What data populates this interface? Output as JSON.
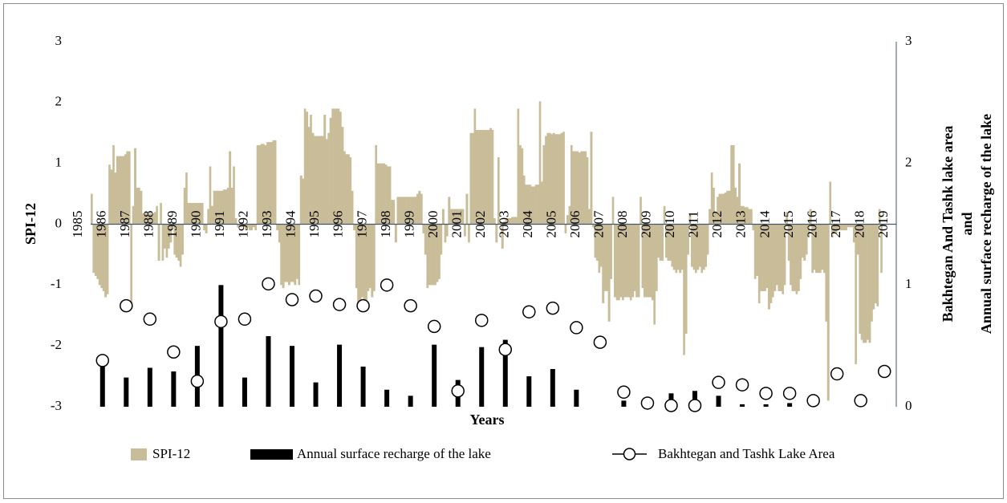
{
  "chart_data": {
    "type": "bar",
    "xlabel": "Years",
    "ylabel": "SPI-12",
    "y2label": [
      "Bakhtegan And Tashk lake area",
      "and",
      "Annual surface recharge of the lake"
    ],
    "xlim": [
      1985,
      2019
    ],
    "xticks": [
      1985,
      1986,
      1987,
      1988,
      1989,
      1990,
      1991,
      1992,
      1993,
      1994,
      1995,
      1996,
      1997,
      1998,
      1999,
      2000,
      2001,
      2002,
      2003,
      2004,
      2005,
      2006,
      2007,
      2008,
      2009,
      2010,
      2011,
      2012,
      2013,
      2014,
      2015,
      2016,
      2017,
      2018,
      2019
    ],
    "ylim": [
      -3,
      3
    ],
    "yticks": [
      -3,
      -2,
      -1,
      0,
      1,
      2,
      3
    ],
    "y2lim": [
      0,
      3
    ],
    "y2ticks": [
      0,
      1,
      2,
      3
    ],
    "legend": "bottom",
    "series": [
      {
        "name": "SPI-12",
        "type": "bar",
        "color": "#c8bd98",
        "x": [
          1985,
          1985.08,
          1985.17,
          1985.25,
          1985.33,
          1985.42,
          1985.5,
          1985.58,
          1985.67,
          1985.75,
          1985.83,
          1985.92,
          1986,
          1986.08,
          1986.17,
          1986.25,
          1986.33,
          1986.42,
          1986.5,
          1986.58,
          1986.67,
          1986.75,
          1986.83,
          1986.92,
          1987,
          1987.08,
          1987.17,
          1987.25,
          1987.33,
          1987.42,
          1987.5,
          1987.58,
          1987.67,
          1987.75,
          1987.83,
          1987.92,
          1988,
          1988.08,
          1988.17,
          1988.25,
          1988.33,
          1988.42,
          1988.5,
          1988.58,
          1988.67,
          1988.75,
          1988.83,
          1988.92,
          1989,
          1989.08,
          1989.17,
          1989.25,
          1989.33,
          1989.42,
          1989.5,
          1989.58,
          1989.67,
          1989.75,
          1989.83,
          1989.92,
          1990,
          1990.08,
          1990.17,
          1990.25,
          1990.33,
          1990.42,
          1990.5,
          1990.58,
          1990.67,
          1990.75,
          1990.83,
          1990.92,
          1991,
          1991.08,
          1991.17,
          1991.25,
          1991.33,
          1991.42,
          1991.5,
          1991.58,
          1991.67,
          1991.75,
          1991.83,
          1991.92,
          1992,
          1992.08,
          1992.17,
          1992.25,
          1992.33,
          1992.42,
          1992.5,
          1992.58,
          1992.67,
          1992.75,
          1992.83,
          1992.92,
          1993,
          1993.08,
          1993.17,
          1993.25,
          1993.33,
          1993.42,
          1993.5,
          1993.58,
          1993.67,
          1993.75,
          1993.83,
          1993.92,
          1994,
          1994.08,
          1994.17,
          1994.25,
          1994.33,
          1994.42,
          1994.5,
          1994.58,
          1994.67,
          1994.75,
          1994.83,
          1994.92,
          1995,
          1995.08,
          1995.17,
          1995.25,
          1995.33,
          1995.42,
          1995.5,
          1995.58,
          1995.67,
          1995.75,
          1995.83,
          1995.92,
          1996,
          1996.08,
          1996.17,
          1996.25,
          1996.33,
          1996.42,
          1996.5,
          1996.58,
          1996.67,
          1996.75,
          1996.83,
          1996.92,
          1997,
          1997.08,
          1997.17,
          1997.25,
          1997.33,
          1997.42,
          1997.5,
          1997.58,
          1997.67,
          1997.75,
          1997.83,
          1997.92,
          1998,
          1998.08,
          1998.17,
          1998.25,
          1998.33,
          1998.42,
          1998.5,
          1998.58,
          1998.67,
          1998.75,
          1998.83,
          1998.92,
          1999,
          1999.08,
          1999.17,
          1999.25,
          1999.33,
          1999.42,
          1999.5,
          1999.58,
          1999.67,
          1999.75,
          1999.83,
          1999.92,
          2000,
          2000.08,
          2000.17,
          2000.25,
          2000.33,
          2000.42,
          2000.5,
          2000.58,
          2000.67,
          2000.75,
          2000.83,
          2000.92,
          2001,
          2001.08,
          2001.17,
          2001.25,
          2001.33,
          2001.42,
          2001.5,
          2001.58,
          2001.67,
          2001.75,
          2001.83,
          2001.92,
          2002,
          2002.08,
          2002.17,
          2002.25,
          2002.33,
          2002.42,
          2002.5,
          2002.58,
          2002.67,
          2002.75,
          2002.83,
          2002.92,
          2003,
          2003.08,
          2003.17,
          2003.25,
          2003.33,
          2003.42,
          2003.5,
          2003.58,
          2003.67,
          2003.75,
          2003.83,
          2003.92,
          2004,
          2004.08,
          2004.17,
          2004.25,
          2004.33,
          2004.42,
          2004.5,
          2004.58,
          2004.67,
          2004.75,
          2004.83,
          2004.92,
          2005,
          2005.08,
          2005.17,
          2005.25,
          2005.33,
          2005.42,
          2005.5,
          2005.58,
          2005.67,
          2005.75,
          2005.83,
          2005.92,
          2006,
          2006.08,
          2006.17,
          2006.25,
          2006.33,
          2006.42,
          2006.5,
          2006.58,
          2006.67,
          2006.75,
          2006.83,
          2006.92,
          2007,
          2007.08,
          2007.17,
          2007.25,
          2007.33,
          2007.42,
          2007.5,
          2007.58,
          2007.67,
          2007.75,
          2007.83,
          2007.92,
          2008,
          2008.08,
          2008.17,
          2008.25,
          2008.33,
          2008.42,
          2008.5,
          2008.58,
          2008.67,
          2008.75,
          2008.83,
          2008.92,
          2009,
          2009.08,
          2009.17,
          2009.25,
          2009.33,
          2009.42,
          2009.5,
          2009.58,
          2009.67,
          2009.75,
          2009.83,
          2009.92,
          2010,
          2010.08,
          2010.17,
          2010.25,
          2010.33,
          2010.42,
          2010.5,
          2010.58,
          2010.67,
          2010.75,
          2010.83,
          2010.92,
          2011,
          2011.08,
          2011.17,
          2011.25,
          2011.33,
          2011.42,
          2011.5,
          2011.58,
          2011.67,
          2011.75,
          2011.83,
          2011.92,
          2012,
          2012.08,
          2012.17,
          2012.25,
          2012.33,
          2012.42,
          2012.5,
          2012.58,
          2012.67,
          2012.75,
          2012.83,
          2012.92,
          2013,
          2013.08,
          2013.17,
          2013.25,
          2013.33,
          2013.42,
          2013.5,
          2013.58,
          2013.67,
          2013.75,
          2013.83,
          2013.92,
          2014,
          2014.08,
          2014.17,
          2014.25,
          2014.33,
          2014.42,
          2014.5,
          2014.58,
          2014.67,
          2014.75,
          2014.83,
          2014.92,
          2015,
          2015.08,
          2015.17,
          2015.25,
          2015.33,
          2015.42,
          2015.5,
          2015.58,
          2015.67,
          2015.75,
          2015.83,
          2015.92,
          2016,
          2016.08,
          2016.17,
          2016.25,
          2016.33,
          2016.42,
          2016.5,
          2016.58,
          2016.67,
          2016.75,
          2016.83,
          2016.92,
          2017,
          2017.08,
          2017.17,
          2017.25,
          2017.33,
          2017.42,
          2017.5,
          2017.58,
          2017.67,
          2017.75,
          2017.83,
          2017.92,
          2018,
          2018.08,
          2018.17,
          2018.25,
          2018.33
        ],
        "values": [
          0.5,
          -0.8,
          -0.85,
          -0.9,
          -1.0,
          -1.05,
          -1.1,
          -1.2,
          -1.15,
          0.98,
          0.9,
          1.3,
          0.85,
          1.12,
          1.12,
          1.12,
          1.12,
          1.15,
          1.2,
          1.2,
          -1.35,
          0.3,
          1.25,
          0.6,
          0.6,
          0.55,
          0.18,
          0.18,
          0.18,
          0.18,
          0.18,
          0.18,
          0.2,
          0.3,
          -0.6,
          0.35,
          -0.6,
          -0.4,
          -0.55,
          -0.4,
          -0.3,
          0.02,
          -0.5,
          -0.55,
          -0.6,
          -0.7,
          -0.5,
          0.6,
          0.85,
          0.35,
          0.35,
          0.35,
          0.35,
          0.35,
          0.35,
          0.35,
          0.35,
          -0.1,
          -0.15,
          0.25,
          0.95,
          0.3,
          0.55,
          0.55,
          0.55,
          0.55,
          0.55,
          0.57,
          0.57,
          0.6,
          1.2,
          0.6,
          0.95,
          0.1,
          -0.05,
          -0.05,
          -0.05,
          -0.05,
          -0.1,
          -0.05,
          -0.1,
          -0.1,
          -0.05,
          -0.1,
          1.3,
          1.3,
          1.32,
          1.32,
          1.3,
          1.35,
          1.35,
          1.35,
          1.38,
          1.38,
          -0.1,
          -0.3,
          -1.0,
          -1.05,
          -0.95,
          -0.95,
          -1.0,
          -0.95,
          -0.95,
          -1.0,
          -0.9,
          -1.0,
          0.8,
          0.75,
          1.9,
          1.85,
          1.6,
          1.8,
          1.5,
          1.45,
          1.45,
          1.45,
          1.45,
          1.45,
          1.8,
          1.4,
          1.5,
          1.75,
          1.9,
          1.9,
          1.9,
          1.9,
          1.85,
          1.6,
          1.2,
          1.15,
          1.15,
          1.1,
          0.55,
          -0.1,
          -1.05,
          -1.3,
          -1.3,
          -1.2,
          -1.3,
          -1.25,
          -1.1,
          -1.05,
          -1.2,
          -1.1,
          1.3,
          1.0,
          1.0,
          1.0,
          1.0,
          0.98,
          0.95,
          0.95,
          0.4,
          0.4,
          -0.3,
          0.45,
          0.45,
          0.45,
          0.45,
          0.45,
          0.45,
          0.45,
          0.45,
          0.45,
          0.45,
          0.5,
          0.55,
          0.5,
          -0.15,
          -0.5,
          -1.05,
          -1.0,
          -1.0,
          -1.0,
          -1.0,
          -0.95,
          -0.9,
          -0.5,
          0.25,
          -0.3,
          -0.2,
          0.45,
          0.25,
          0.25,
          0.25,
          0.25,
          0.25,
          0.25,
          0.25,
          -0.2,
          0.5,
          -0.3,
          1.5,
          1.5,
          1.9,
          1.55,
          1.55,
          1.55,
          1.55,
          1.55,
          1.55,
          1.55,
          1.58,
          1.55,
          0.1,
          -0.3,
          1.1,
          0.05,
          -0.4,
          0.05,
          0.1,
          0.1,
          0.1,
          0.12,
          0.12,
          0.12,
          1.9,
          1.3,
          1.25,
          0.8,
          0.65,
          0.65,
          0.65,
          0.62,
          0.62,
          0.65,
          0.65,
          2.02,
          0.7,
          1.3,
          1.45,
          1.5,
          1.5,
          1.48,
          1.5,
          1.48,
          1.48,
          1.48,
          1.5,
          1.52,
          -0.15,
          0.15,
          0.3,
          1.3,
          1.2,
          1.2,
          1.2,
          1.18,
          1.2,
          1.2,
          1.2,
          1.1,
          0.25,
          1.52,
          -0.05,
          -0.55,
          -0.6,
          -0.8,
          -0.7,
          -1.3,
          -1.1,
          -1.1,
          -1.6,
          -0.9,
          0.45,
          -1.2,
          -1.25,
          -1.25,
          -1.2,
          -1.25,
          -1.2,
          -1.2,
          -1.2,
          -1.25,
          -1.2,
          -1.1,
          -1.2,
          -1.2,
          0.45,
          -1.05,
          -1.2,
          -1.2,
          -1.2,
          -1.2,
          -1.25,
          -1.65,
          -1.1,
          -0.55,
          -0.6,
          -0.6,
          0.3,
          -0.55,
          -0.6,
          -0.6,
          -0.7,
          -0.75,
          -0.8,
          -0.75,
          -0.8,
          -0.75,
          -2.15,
          -1.8,
          -0.5,
          0.15,
          -0.7,
          -0.75,
          -0.8,
          -0.75,
          -0.7,
          -0.8,
          -0.75,
          -0.7,
          -0.5,
          0.25,
          0.85,
          0.6,
          0.2,
          0.45,
          0.5,
          0.5,
          0.5,
          0.52,
          0.55,
          0.55,
          1.3,
          1.3,
          0.6,
          0.45,
          1.0,
          0.3,
          0.3,
          0.28,
          0.28,
          0.25,
          0.25,
          -0.1,
          -0.9,
          -0.85,
          -1.3,
          -1.1,
          -1.1,
          -1.1,
          -1.05,
          -1.4,
          -1.3,
          -1.2,
          -1.1,
          -1.0,
          -1.1,
          -1.1,
          -1.15,
          -1.0,
          0.2,
          -0.6,
          -1.0,
          -1.1,
          -1.1,
          -1.15,
          -1.1,
          -0.9,
          -0.55,
          -0.6,
          -0.5,
          -0.2,
          0.25,
          -0.8,
          -0.75,
          -0.8,
          -0.8,
          -0.8,
          -0.75,
          -0.8,
          -1.6,
          -2.9,
          0.7,
          -0.2,
          -0.15,
          -0.15,
          -0.1,
          -0.1,
          -0.1,
          -0.1,
          -0.1,
          -0.05,
          -0.05,
          -0.05,
          -0.3,
          -2.3,
          -0.5,
          -1.8,
          -1.9,
          -1.95,
          -1.95,
          -1.9,
          -1.95,
          -1.6,
          -1.4,
          -1.3,
          -1.35,
          0.25,
          -0.8
        ]
      },
      {
        "name": "Annual surface recharge of the lake",
        "type": "bar",
        "axis": "y2",
        "color": "#000000",
        "x": [
          1985.5,
          1986.5,
          1987.5,
          1988.5,
          1989.5,
          1990.5,
          1991.5,
          1992.5,
          1993.5,
          1994.5,
          1995.5,
          1996.5,
          1997.5,
          1998.5,
          1999.5,
          2000.5,
          2001.5,
          2002.5,
          2003.5,
          2004.5,
          2005.5,
          2006.5,
          2007.5,
          2008.5,
          2009.5,
          2010.5,
          2011.5,
          2012.5,
          2013.5,
          2014.5,
          2015.5,
          2016.5,
          2017.5,
          2018.5
        ],
        "values": [
          0.37,
          0.24,
          0.32,
          0.29,
          0.5,
          1.0,
          0.24,
          0.58,
          0.5,
          0.2,
          0.51,
          0.33,
          0.14,
          0.09,
          0.51,
          0.22,
          0.49,
          0.55,
          0.25,
          0.31,
          0.14,
          0,
          0.05,
          0.07,
          0.11,
          0.13,
          0.09,
          0.02,
          0.02,
          0.03,
          0,
          0,
          0,
          0
        ]
      },
      {
        "name": "Bakhtegan and Tashk Lake Area",
        "type": "scatter",
        "axis": "y2",
        "color": "#000000",
        "x": [
          1985.5,
          1986.5,
          1987.5,
          1988.5,
          1989.5,
          1990.5,
          1991.5,
          1992.5,
          1993.5,
          1994.5,
          1995.5,
          1996.5,
          1997.5,
          1998.5,
          1999.5,
          2000.5,
          2001.5,
          2002.5,
          2003.5,
          2004.5,
          2005.5,
          2006.5,
          2007.5,
          2008.5,
          2009.5,
          2010.5,
          2011.5,
          2012.5,
          2013.5,
          2014.5,
          2015.5,
          2016.5,
          2017.5,
          2018.5
        ],
        "values": [
          0.38,
          0.83,
          0.72,
          0.45,
          0.21,
          0.7,
          0.72,
          1.01,
          0.88,
          0.91,
          0.84,
          0.83,
          1.0,
          0.83,
          0.66,
          0.13,
          0.71,
          0.47,
          0.78,
          0.81,
          0.65,
          0.53,
          0.12,
          0.03,
          0.01,
          0.01,
          0.2,
          0.18,
          0.11,
          0.11,
          0.05,
          0.27,
          0.05,
          0.29
        ]
      }
    ]
  }
}
